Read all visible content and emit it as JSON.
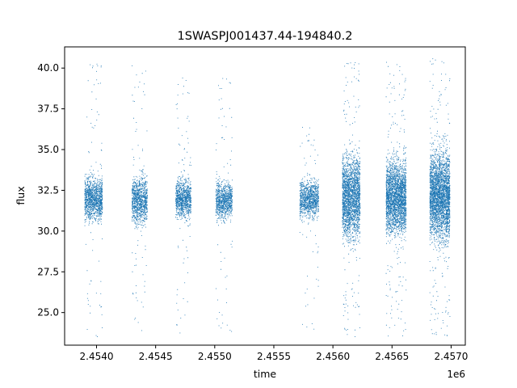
{
  "chart_data": {
    "type": "scatter",
    "title": "1SWASPJ001437.44-194840.2",
    "xlabel": "time",
    "ylabel": "flux",
    "x_offset_label": "1e6",
    "xlim": [
      2453730,
      2457120
    ],
    "ylim": [
      23.0,
      41.3
    ],
    "x_ticks": [
      2454000,
      2454500,
      2455000,
      2455500,
      2456000,
      2456500,
      2457000
    ],
    "x_tick_labels": [
      "2.4540",
      "2.4545",
      "2.4550",
      "2.4555",
      "2.4560",
      "2.4565",
      "2.4570"
    ],
    "y_ticks": [
      25.0,
      27.5,
      30.0,
      32.5,
      35.0,
      37.5,
      40.0
    ],
    "y_tick_labels": [
      "25.0",
      "27.5",
      "30.0",
      "32.5",
      "35.0",
      "37.5",
      "40.0"
    ],
    "grid": false,
    "marker_color": "#1f77b4",
    "clusters": [
      {
        "x_start": 2453900,
        "x_end": 2454050,
        "center": 32.0,
        "core_spread": 1.1,
        "outlier_low": 23.5,
        "outlier_high": 40.4,
        "density": 1200,
        "outlier_count": 90
      },
      {
        "x_start": 2454300,
        "x_end": 2454430,
        "center": 31.9,
        "core_spread": 1.2,
        "outlier_low": 23.6,
        "outlier_high": 40.2,
        "density": 1000,
        "outlier_count": 80
      },
      {
        "x_start": 2454670,
        "x_end": 2454800,
        "center": 32.0,
        "core_spread": 1.0,
        "outlier_low": 23.6,
        "outlier_high": 39.6,
        "density": 900,
        "outlier_count": 80
      },
      {
        "x_start": 2455010,
        "x_end": 2455150,
        "center": 31.9,
        "core_spread": 1.0,
        "outlier_low": 23.8,
        "outlier_high": 39.4,
        "density": 900,
        "outlier_count": 60
      },
      {
        "x_start": 2455720,
        "x_end": 2455880,
        "center": 32.0,
        "core_spread": 1.0,
        "outlier_low": 24.0,
        "outlier_high": 36.7,
        "density": 1000,
        "outlier_count": 60
      },
      {
        "x_start": 2456080,
        "x_end": 2456230,
        "center": 32.1,
        "core_spread": 2.2,
        "outlier_low": 23.5,
        "outlier_high": 40.6,
        "density": 2200,
        "outlier_count": 160
      },
      {
        "x_start": 2456450,
        "x_end": 2456620,
        "center": 32.1,
        "core_spread": 1.9,
        "outlier_low": 23.5,
        "outlier_high": 40.5,
        "density": 2600,
        "outlier_count": 180
      },
      {
        "x_start": 2456820,
        "x_end": 2456990,
        "center": 32.2,
        "core_spread": 2.3,
        "outlier_low": 23.5,
        "outlier_high": 40.6,
        "density": 3000,
        "outlier_count": 200
      }
    ]
  }
}
